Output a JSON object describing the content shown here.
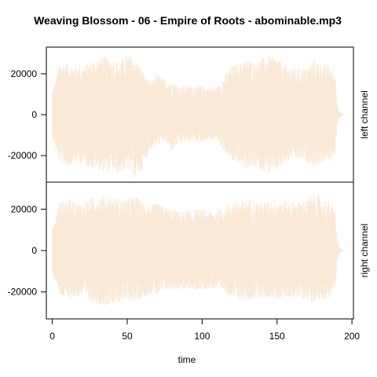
{
  "chart_data": {
    "type": "line",
    "title": "Weaving Blossom - 06 - Empire of Roots - abominable.mp3",
    "xlabel": "time",
    "x_ticks": [
      0,
      50,
      100,
      150,
      200
    ],
    "xlim": [
      -4,
      201
    ],
    "waveform_color": "#FAE9D7",
    "panels": [
      {
        "name": "left channel",
        "ylim": [
          -33000,
          33000
        ],
        "y_ticks": [
          -20000,
          0,
          20000
        ],
        "envelope": {
          "t": [
            0,
            2,
            5,
            10,
            15,
            20,
            25,
            30,
            35,
            40,
            45,
            50,
            55,
            60,
            65,
            70,
            75,
            80,
            85,
            90,
            95,
            100,
            105,
            110,
            115,
            120,
            125,
            130,
            135,
            140,
            145,
            150,
            155,
            160,
            165,
            170,
            175,
            180,
            185,
            189,
            190,
            191,
            192,
            193,
            194
          ],
          "max": [
            12000,
            16000,
            26000,
            25000,
            24000,
            23500,
            26000,
            27500,
            29000,
            27000,
            26500,
            29500,
            28000,
            22000,
            15000,
            20000,
            17000,
            16000,
            14000,
            14500,
            14500,
            14000,
            13500,
            13500,
            19000,
            24000,
            25500,
            27500,
            26000,
            28000,
            29000,
            28500,
            24500,
            23000,
            22500,
            23000,
            27000,
            25500,
            24000,
            20000,
            6000,
            2500,
            1500,
            800,
            300
          ],
          "min": [
            -12000,
            -16000,
            -24000,
            -26000,
            -23500,
            -24500,
            -26000,
            -27000,
            -28000,
            -27500,
            -29000,
            -27000,
            -31000,
            -27000,
            -17000,
            -15000,
            -13000,
            -18000,
            -14000,
            -13500,
            -13000,
            -14000,
            -13000,
            -12500,
            -19000,
            -23000,
            -25000,
            -27000,
            -26000,
            -27500,
            -29000,
            -28000,
            -24000,
            -22000,
            -22500,
            -23000,
            -26000,
            -24000,
            -23000,
            -19000,
            -6000,
            -2500,
            -1500,
            -800,
            -300
          ]
        }
      },
      {
        "name": "right channel",
        "ylim": [
          -33000,
          33000
        ],
        "y_ticks": [
          -20000,
          0,
          20000
        ],
        "envelope": {
          "t": [
            0,
            2,
            5,
            10,
            15,
            20,
            25,
            30,
            35,
            40,
            45,
            50,
            55,
            60,
            65,
            70,
            75,
            80,
            85,
            90,
            95,
            100,
            105,
            110,
            115,
            120,
            125,
            130,
            135,
            140,
            145,
            150,
            155,
            160,
            165,
            170,
            175,
            180,
            185,
            189,
            190,
            191,
            192,
            193,
            194
          ],
          "max": [
            11000,
            15000,
            24000,
            25000,
            24000,
            23000,
            25500,
            26000,
            27000,
            26000,
            25000,
            25500,
            26000,
            24000,
            22000,
            23000,
            21000,
            20000,
            19000,
            19500,
            20000,
            20000,
            19000,
            19500,
            21000,
            24000,
            24500,
            25000,
            24000,
            23500,
            24000,
            25000,
            24000,
            23500,
            24000,
            24500,
            28000,
            25000,
            24000,
            19000,
            6000,
            2500,
            1500,
            800,
            300
          ],
          "min": [
            -11000,
            -15000,
            -22000,
            -24000,
            -23000,
            -22500,
            -25000,
            -26000,
            -27000,
            -25500,
            -25000,
            -24500,
            -25000,
            -23000,
            -21000,
            -22000,
            -20000,
            -19500,
            -18500,
            -19000,
            -19500,
            -19000,
            -18500,
            -19000,
            -20500,
            -23000,
            -24000,
            -24500,
            -23500,
            -23000,
            -23500,
            -24000,
            -23000,
            -22500,
            -23000,
            -24000,
            -25000,
            -24000,
            -23000,
            -18000,
            -6000,
            -2500,
            -1500,
            -800,
            -300
          ]
        }
      }
    ]
  }
}
